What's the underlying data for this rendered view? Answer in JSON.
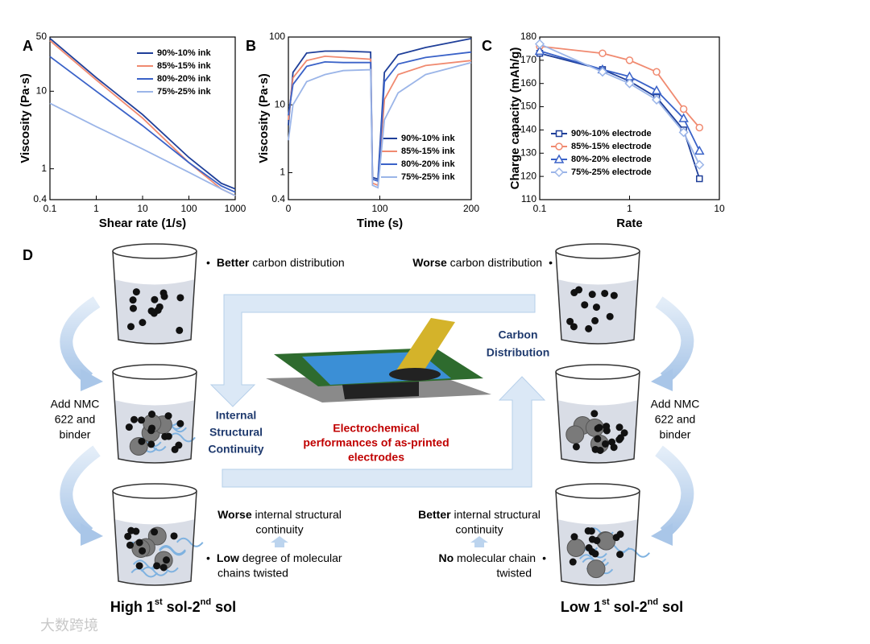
{
  "chart_data": [
    {
      "type": "line",
      "panel": "A",
      "xlabel": "Shear rate (1/s)",
      "ylabel": "Viscosity (Pa·s)",
      "xlog": true,
      "ylog": true,
      "xlim": [
        0.1,
        1000
      ],
      "ylim": [
        0.4,
        50
      ],
      "xticks": [
        0.1,
        1,
        10,
        100,
        1000
      ],
      "yticks": [
        0.4,
        1,
        10,
        50
      ],
      "legend": "upper right",
      "x": [
        0.1,
        1,
        10,
        100,
        500,
        1000
      ],
      "series": [
        {
          "name": "90%-10% ink",
          "color": "#1f3f99",
          "values": [
            48,
            15,
            5,
            1.4,
            0.65,
            0.55
          ]
        },
        {
          "name": "85%-15% ink",
          "color": "#f08a70",
          "values": [
            45,
            14,
            4.5,
            1.2,
            0.55,
            0.45
          ]
        },
        {
          "name": "80%-20% ink",
          "color": "#3a62c8",
          "values": [
            28,
            10,
            3.6,
            1.2,
            0.6,
            0.5
          ]
        },
        {
          "name": "75%-25% ink",
          "color": "#9bb5e8",
          "values": [
            7,
            3.5,
            1.8,
            0.9,
            0.55,
            0.45
          ]
        }
      ]
    },
    {
      "type": "line",
      "panel": "B",
      "xlabel": "Time (s)",
      "ylabel": "Viscosity (Pa·s)",
      "xlog": false,
      "ylog": true,
      "xlim": [
        0,
        200
      ],
      "ylim": [
        0.4,
        100
      ],
      "xticks": [
        0,
        100,
        200
      ],
      "yticks": [
        0.4,
        1,
        10,
        100
      ],
      "legend": "lower right",
      "x": [
        0,
        5,
        20,
        40,
        60,
        90,
        92,
        98,
        105,
        120,
        150,
        200
      ],
      "series": [
        {
          "name": "90%-10% ink",
          "color": "#1f3f99",
          "values": [
            5,
            30,
            58,
            62,
            62,
            60,
            0.85,
            0.8,
            30,
            55,
            70,
            95
          ]
        },
        {
          "name": "85%-15% ink",
          "color": "#f08a70",
          "values": [
            6,
            25,
            45,
            52,
            50,
            47,
            0.7,
            0.65,
            12,
            28,
            38,
            45
          ]
        },
        {
          "name": "80%-20% ink",
          "color": "#3a62c8",
          "values": [
            7,
            20,
            37,
            43,
            42,
            42,
            0.8,
            0.75,
            22,
            40,
            50,
            60
          ]
        },
        {
          "name": "75%-25% ink",
          "color": "#9bb5e8",
          "values": [
            3,
            10,
            22,
            28,
            32,
            33,
            0.65,
            0.6,
            6,
            15,
            28,
            42
          ]
        }
      ]
    },
    {
      "type": "line",
      "panel": "C",
      "xlabel": "Rate",
      "ylabel": "Charge capacity (mAh/g)",
      "xlog": true,
      "ylog": false,
      "xlim": [
        0.1,
        10
      ],
      "ylim": [
        110,
        180
      ],
      "xticks": [
        0.1,
        1,
        10
      ],
      "yticks": [
        110,
        120,
        130,
        140,
        150,
        160,
        170,
        180
      ],
      "legend": "lower left",
      "x": [
        0.1,
        0.5,
        1,
        2,
        4,
        6
      ],
      "series": [
        {
          "name": "90%-10% electrode",
          "color": "#1f3f99",
          "marker": "square",
          "values": [
            173,
            166,
            161,
            154,
            140,
            119
          ]
        },
        {
          "name": "85%-15% electrode",
          "color": "#f08a70",
          "marker": "circle",
          "values": [
            176,
            173,
            170,
            165,
            149,
            141
          ]
        },
        {
          "name": "80%-20% electrode",
          "color": "#3a62c8",
          "marker": "triangle",
          "values": [
            174,
            166,
            163,
            157,
            145,
            131
          ]
        },
        {
          "name": "75%-25% electrode",
          "color": "#9bb5e8",
          "marker": "diamond",
          "values": [
            177,
            165,
            160,
            153,
            139,
            125
          ]
        }
      ]
    }
  ],
  "diagram": {
    "panel": "D",
    "bullet": "•",
    "left_top_note": {
      "bold": "Better",
      "rest": " carbon distribution"
    },
    "right_top_note": {
      "bold": "Worse",
      "rest": " carbon distribution"
    },
    "add_text": [
      "Add NMC",
      "622 and",
      "binder"
    ],
    "internal_label": [
      "Internal",
      "Structural",
      "Continuity"
    ],
    "carbon_label": [
      "Carbon",
      "Distribution"
    ],
    "center_caption": [
      "Electrochemical",
      "performances of as-printed",
      "electrodes"
    ],
    "left_worse": {
      "bold": "Worse",
      "lines": [
        " internal structural",
        "continuity"
      ]
    },
    "left_low": {
      "bold": "Low",
      "lines": [
        " degree of molecular",
        "chains twisted"
      ]
    },
    "right_better": {
      "bold": "Better",
      "lines": [
        " internal structural",
        "continuity"
      ]
    },
    "right_no": {
      "bold": "No",
      "lines": [
        " molecular chain",
        "twisted"
      ]
    },
    "left_title": [
      "High 1",
      "st",
      " sol-2",
      "nd",
      " sol"
    ],
    "right_title": [
      "Low 1",
      "st",
      " sol-2",
      "nd",
      " sol"
    ],
    "watermark": "大数跨境"
  }
}
